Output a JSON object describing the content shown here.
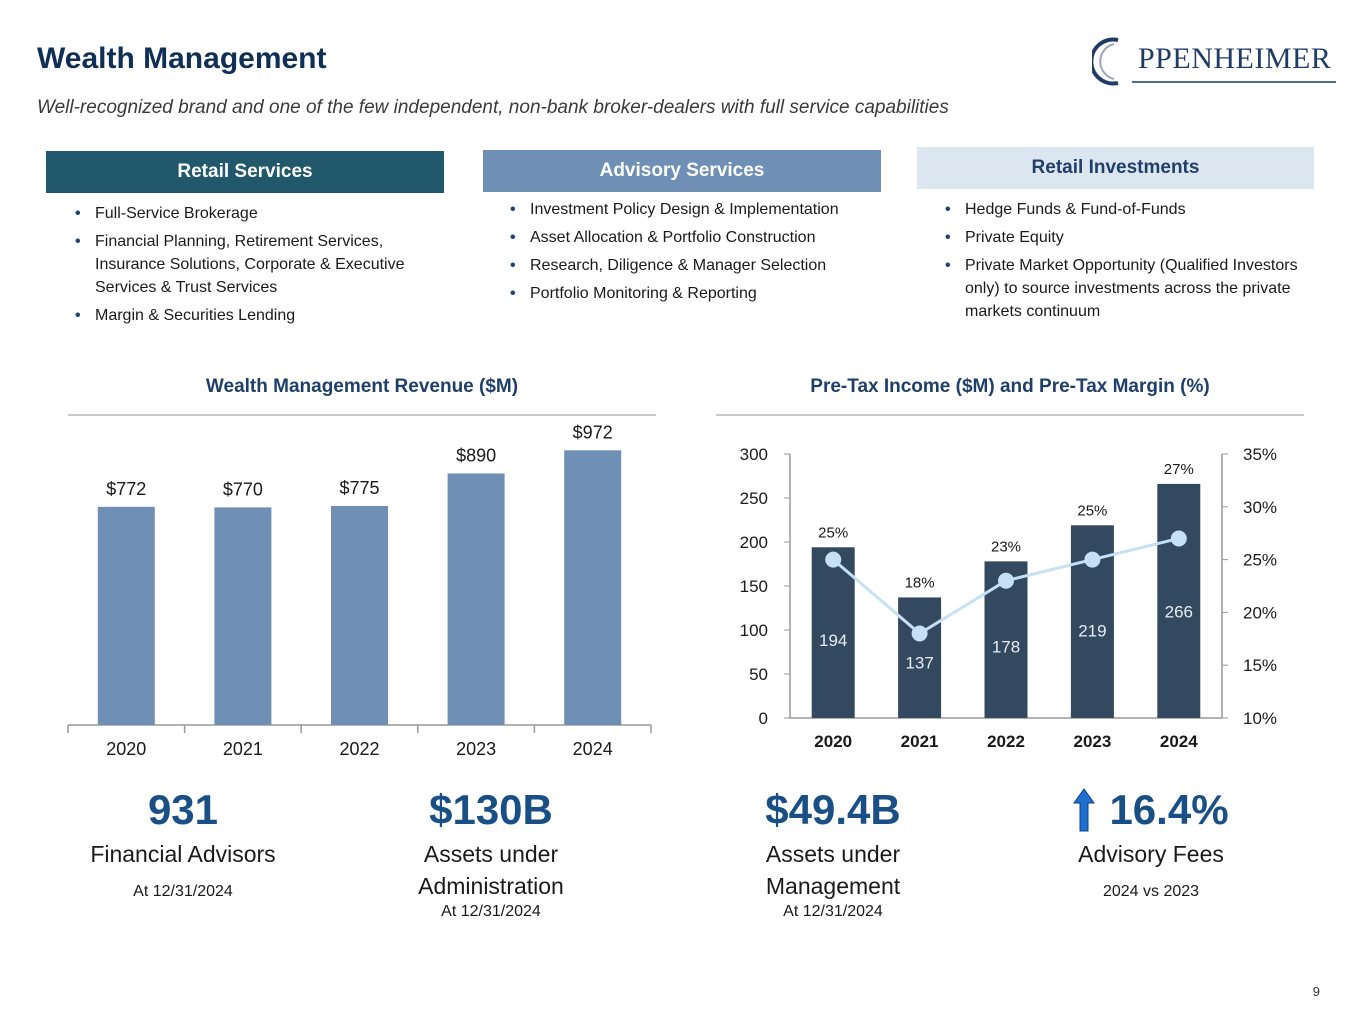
{
  "header": {
    "title": "Wealth Management",
    "subtitle": "Well-recognized brand and one of the few independent, non-bank broker-dealers with full service capabilities",
    "logo_text": "PPENHEIMER"
  },
  "services": {
    "retail": {
      "title": "Retail Services",
      "items": [
        "Full-Service Brokerage",
        "Financial Planning, Retirement Services, Insurance Solutions, Corporate & Executive Services & Trust Services",
        "Margin & Securities Lending"
      ]
    },
    "advisory": {
      "title": "Advisory Services",
      "items": [
        "Investment Policy Design & Implementation",
        "Asset Allocation & Portfolio Construction",
        "Research, Diligence & Manager Selection",
        "Portfolio Monitoring & Reporting"
      ]
    },
    "investments": {
      "title": "Retail Investments",
      "items": [
        "Hedge Funds & Fund-of-Funds",
        "Private Equity",
        "Private Market Opportunity (Qualified Investors only) to source investments across the private markets continuum"
      ]
    }
  },
  "colors": {
    "navy": "#0f2f57",
    "revenue_bar": "#6f8fb5",
    "pretax_bar": "#33495f",
    "margin_line": "#c6e0f5",
    "kpi_value": "#1a4f85"
  },
  "chart_data": [
    {
      "type": "bar",
      "title": "Wealth Management Revenue ($M)",
      "categories": [
        "2020",
        "2021",
        "2022",
        "2023",
        "2024"
      ],
      "values": [
        772,
        770,
        775,
        890,
        972
      ],
      "data_labels": [
        "$772",
        "$770",
        "$775",
        "$890",
        "$972"
      ],
      "ylim": [
        0,
        1150
      ],
      "grid": false
    },
    {
      "type": "bar",
      "title": "Pre-Tax Income ($M) and Pre-Tax Margin (%)",
      "categories": [
        "2020",
        "2021",
        "2022",
        "2023",
        "2024"
      ],
      "series": [
        {
          "values": [
            194,
            137,
            178,
            219,
            266
          ],
          "kind": "bar",
          "axis": "left"
        },
        {
          "values": [
            25,
            18,
            23,
            25,
            27
          ],
          "kind": "line",
          "axis": "right",
          "labels": [
            "25%",
            "18%",
            "23%",
            "25%",
            "27%"
          ]
        }
      ],
      "y_left": {
        "ylim": [
          0,
          300
        ],
        "ticks": [
          "0",
          "50",
          "100",
          "150",
          "200",
          "250",
          "300"
        ]
      },
      "y_right": {
        "ylim": [
          10,
          35
        ],
        "ticks": [
          "10%",
          "15%",
          "20%",
          "25%",
          "30%",
          "35%"
        ]
      },
      "grid": false
    }
  ],
  "kpis": [
    {
      "value": "931",
      "label": "Financial Advisors",
      "sub": "At 12/31/2024"
    },
    {
      "value": "$130B",
      "label": "Assets under Administration",
      "sub": "At 12/31/2024"
    },
    {
      "value": "$49.4B",
      "label": "Assets under Management",
      "sub": "At 12/31/2024"
    },
    {
      "value": "16.4%",
      "label": "Advisory Fees",
      "sub": "2024 vs 2023",
      "icon": "up-arrow-icon"
    }
  ],
  "page_number": "9"
}
